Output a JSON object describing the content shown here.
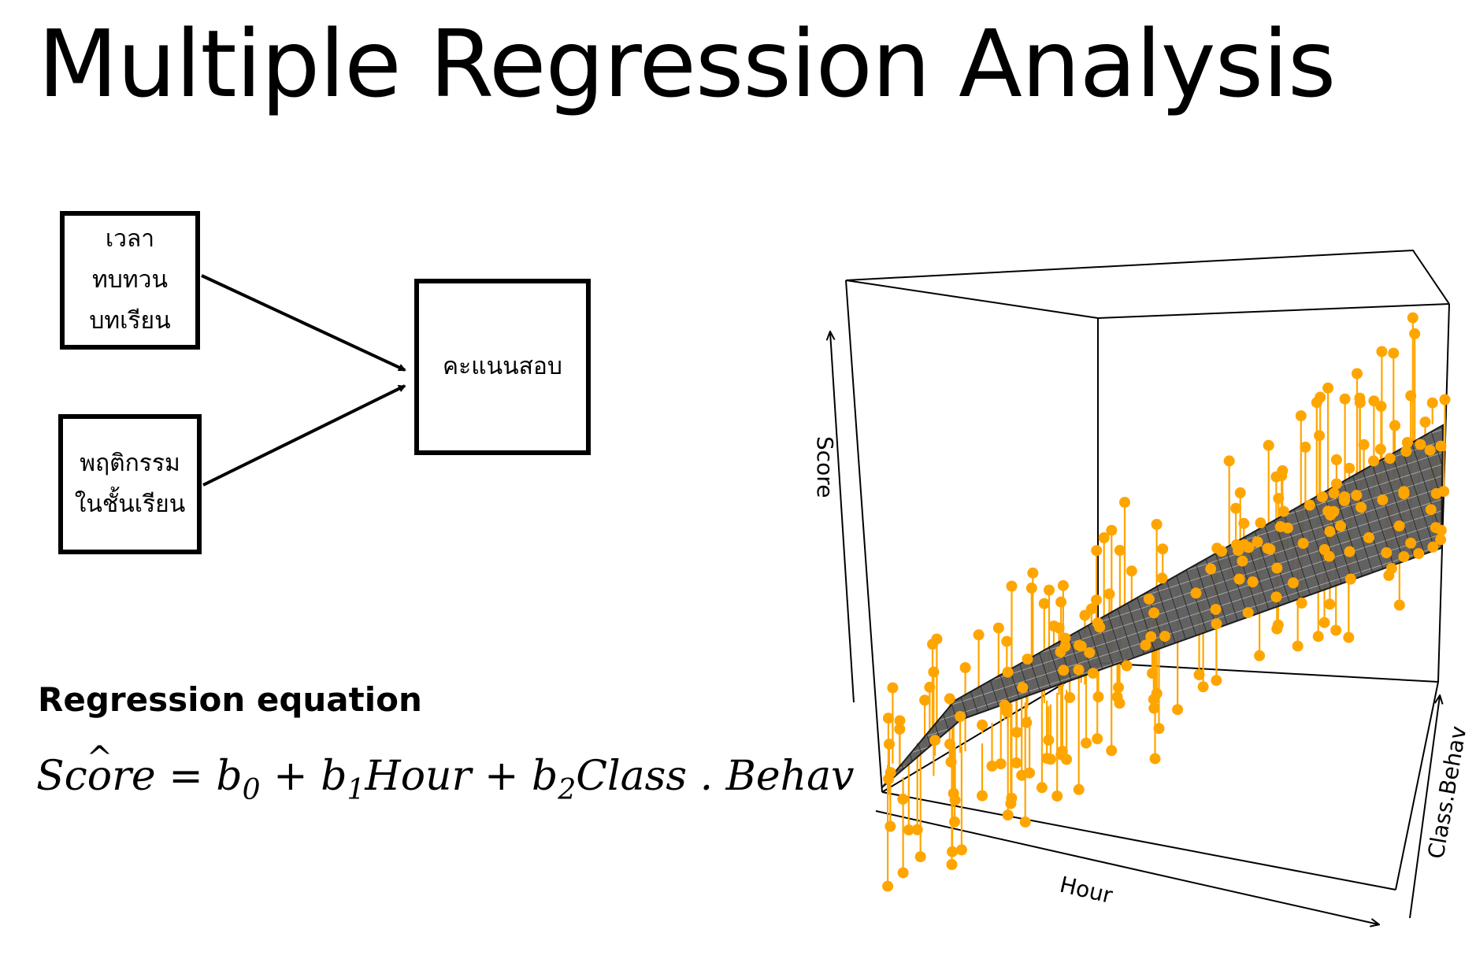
{
  "title": "Multiple Regression Analysis",
  "diagram": {
    "box_review": "เวลา\nทบทวน\nบทเรียน",
    "box_behavior": "พฤติกรรม\nในชั้นเรียน",
    "box_score": "คะแนนสอบ"
  },
  "equation": {
    "heading": "Regression equation",
    "lhs_prefix": "Sc",
    "lhs_hat": "o",
    "lhs_suffix": "re",
    "equals": "=",
    "plus": "+",
    "b0_base": "b",
    "b0_sub": "0",
    "b1_base": "b",
    "b1_sub": "1",
    "term1": "Hour",
    "b2_base": "b",
    "b2_sub": "2",
    "term2": "Class . Behav"
  },
  "plot": {
    "axis_score": "Score",
    "axis_hour": "Hour",
    "axis_class": "Class.Behav",
    "point_color": "#FFA500",
    "surface_color": "#222222"
  }
}
